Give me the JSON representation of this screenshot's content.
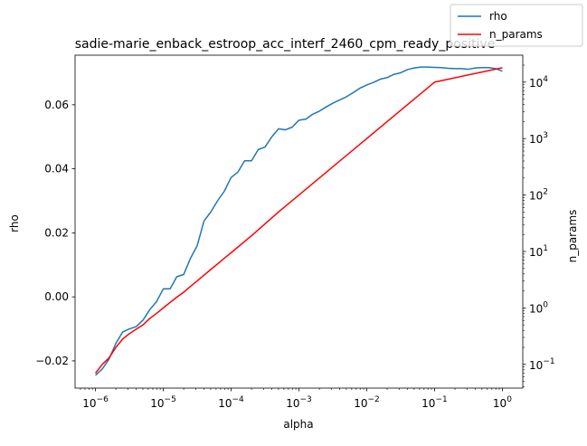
{
  "chart_data": {
    "type": "line",
    "title": "sadie-marie_enback_estroop_acc_interf_2460_cpm_ready_positive",
    "xlabel": "alpha",
    "ylabel_left": "rho",
    "ylabel_right": "n_params",
    "x_scale": "log",
    "y_right_scale": "log",
    "xlim": [
      5e-07,
      2
    ],
    "ylim_left": [
      -0.0285,
      0.0755
    ],
    "ylim_right": [
      0.038,
      30000
    ],
    "x_ticks": [
      {
        "value": 1e-06,
        "base": "10",
        "exp": "−6"
      },
      {
        "value": 1e-05,
        "base": "10",
        "exp": "−5"
      },
      {
        "value": 0.0001,
        "base": "10",
        "exp": "−4"
      },
      {
        "value": 0.001,
        "base": "10",
        "exp": "−3"
      },
      {
        "value": 0.01,
        "base": "10",
        "exp": "−2"
      },
      {
        "value": 0.1,
        "base": "10",
        "exp": "−1"
      },
      {
        "value": 1,
        "base": "10",
        "exp": "0"
      }
    ],
    "y_left_ticks": [
      {
        "value": -0.02,
        "label": "−0.02"
      },
      {
        "value": 0.0,
        "label": "0.00"
      },
      {
        "value": 0.02,
        "label": "0.02"
      },
      {
        "value": 0.04,
        "label": "0.04"
      },
      {
        "value": 0.06,
        "label": "0.06"
      }
    ],
    "y_right_ticks": [
      {
        "value": 0.1,
        "base": "10",
        "exp": "−1"
      },
      {
        "value": 1,
        "base": "10",
        "exp": "0"
      },
      {
        "value": 10,
        "base": "10",
        "exp": "1"
      },
      {
        "value": 100,
        "base": "10",
        "exp": "2"
      },
      {
        "value": 1000,
        "base": "10",
        "exp": "3"
      },
      {
        "value": 10000,
        "base": "10",
        "exp": "4"
      }
    ],
    "legend_position": "top-right",
    "grid": false,
    "series": [
      {
        "name": "rho",
        "axis": "left",
        "color": "#1f77b4",
        "x": [
          1e-06,
          1.26e-06,
          1.58e-06,
          2e-06,
          2.51e-06,
          3.16e-06,
          3.98e-06,
          5.01e-06,
          6.31e-06,
          7.94e-06,
          1e-05,
          1.26e-05,
          1.58e-05,
          2e-05,
          2.51e-05,
          3.16e-05,
          3.98e-05,
          5.01e-05,
          6.31e-05,
          7.94e-05,
          0.0001,
          0.000126,
          0.000158,
          0.0002,
          0.000251,
          0.000316,
          0.000398,
          0.000501,
          0.000631,
          0.000794,
          0.001,
          0.00126,
          0.00158,
          0.002,
          0.00251,
          0.00316,
          0.00398,
          0.00501,
          0.00631,
          0.00794,
          0.01,
          0.0126,
          0.0158,
          0.02,
          0.0251,
          0.0316,
          0.0398,
          0.0501,
          0.0631,
          0.0794,
          0.1,
          0.126,
          0.158,
          0.2,
          0.251,
          0.316,
          0.398,
          0.501,
          0.631,
          0.794,
          1.0
        ],
        "values": [
          -0.0245,
          -0.0225,
          -0.0195,
          -0.0145,
          -0.011,
          -0.01,
          -0.0093,
          -0.0073,
          -0.004,
          -0.0015,
          0.0025,
          0.0025,
          0.0063,
          0.007,
          0.012,
          0.016,
          0.0237,
          0.0265,
          0.03,
          0.033,
          0.0373,
          0.039,
          0.0425,
          0.0425,
          0.046,
          0.0468,
          0.05,
          0.0525,
          0.0522,
          0.053,
          0.0552,
          0.0555,
          0.057,
          0.058,
          0.0593,
          0.0605,
          0.0615,
          0.0625,
          0.0638,
          0.0652,
          0.0662,
          0.067,
          0.068,
          0.0685,
          0.0695,
          0.07,
          0.071,
          0.0715,
          0.0718,
          0.0718,
          0.0717,
          0.0716,
          0.0714,
          0.0713,
          0.0713,
          0.0711,
          0.0715,
          0.0716,
          0.0716,
          0.0713,
          0.0705
        ]
      },
      {
        "name": "n_params",
        "axis": "right",
        "color": "#ff0000",
        "x": [
          1e-06,
          1.26e-06,
          1.58e-06,
          2e-06,
          2.51e-06,
          3.16e-06,
          3.98e-06,
          5.01e-06,
          6.31e-06,
          7.94e-06,
          1e-05,
          1.26e-05,
          1.58e-05,
          2e-05,
          2.51e-05,
          3.16e-05,
          3.98e-05,
          5.01e-05,
          6.31e-05,
          7.94e-05,
          0.0001,
          0.0002,
          0.0005,
          0.001,
          0.01,
          0.1,
          1.0
        ],
        "values": [
          0.07,
          0.1,
          0.13,
          0.2,
          0.28,
          0.35,
          0.42,
          0.5,
          0.65,
          0.8,
          1.0,
          1.25,
          1.55,
          1.9,
          2.4,
          3.0,
          3.8,
          4.8,
          6.0,
          7.6,
          9.5,
          19,
          50,
          100,
          1000,
          10000,
          18000
        ]
      }
    ]
  }
}
